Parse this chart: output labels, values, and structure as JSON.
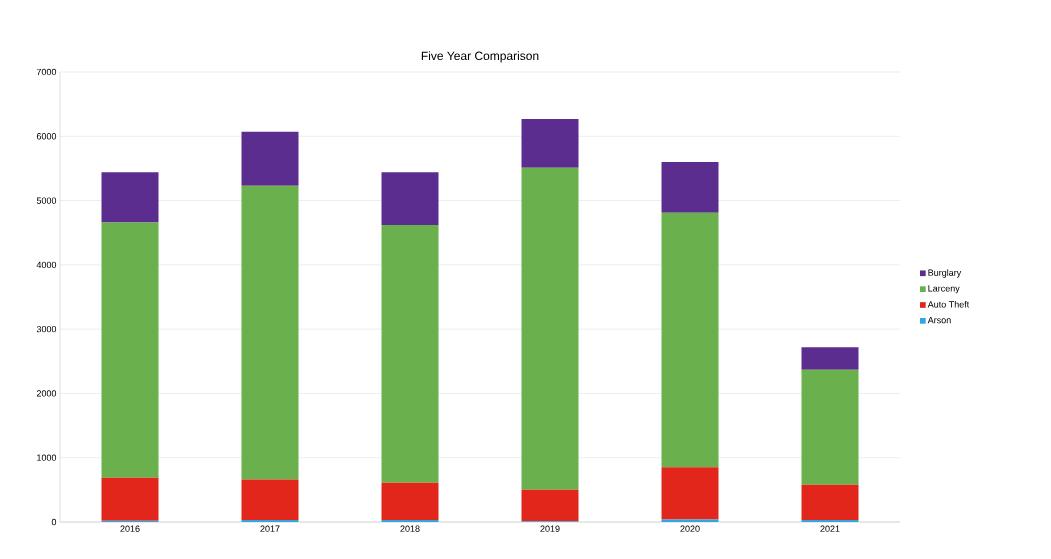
{
  "chart_data": {
    "type": "bar",
    "title": "Five Year Comparison",
    "stacked": true,
    "categories": [
      "2016",
      "2017",
      "2018",
      "2019",
      "2020",
      "2021"
    ],
    "series": [
      {
        "name": "Arson",
        "color": "#2fa8e0",
        "values": [
          20,
          30,
          30,
          10,
          40,
          30
        ]
      },
      {
        "name": "Auto Theft",
        "color": "#e3261b",
        "values": [
          670,
          630,
          580,
          490,
          810,
          550
        ]
      },
      {
        "name": "Larceny",
        "color": "#6ab04c",
        "values": [
          3970,
          4570,
          4010,
          5010,
          3960,
          1790
        ]
      },
      {
        "name": "Burglary",
        "color": "#5b2d8e",
        "values": [
          780,
          840,
          820,
          760,
          790,
          350
        ]
      }
    ],
    "ylim": [
      0,
      7000
    ],
    "yticks": [
      0,
      1000,
      2000,
      3000,
      4000,
      5000,
      6000,
      7000
    ],
    "grid": "y",
    "legend": "right"
  }
}
